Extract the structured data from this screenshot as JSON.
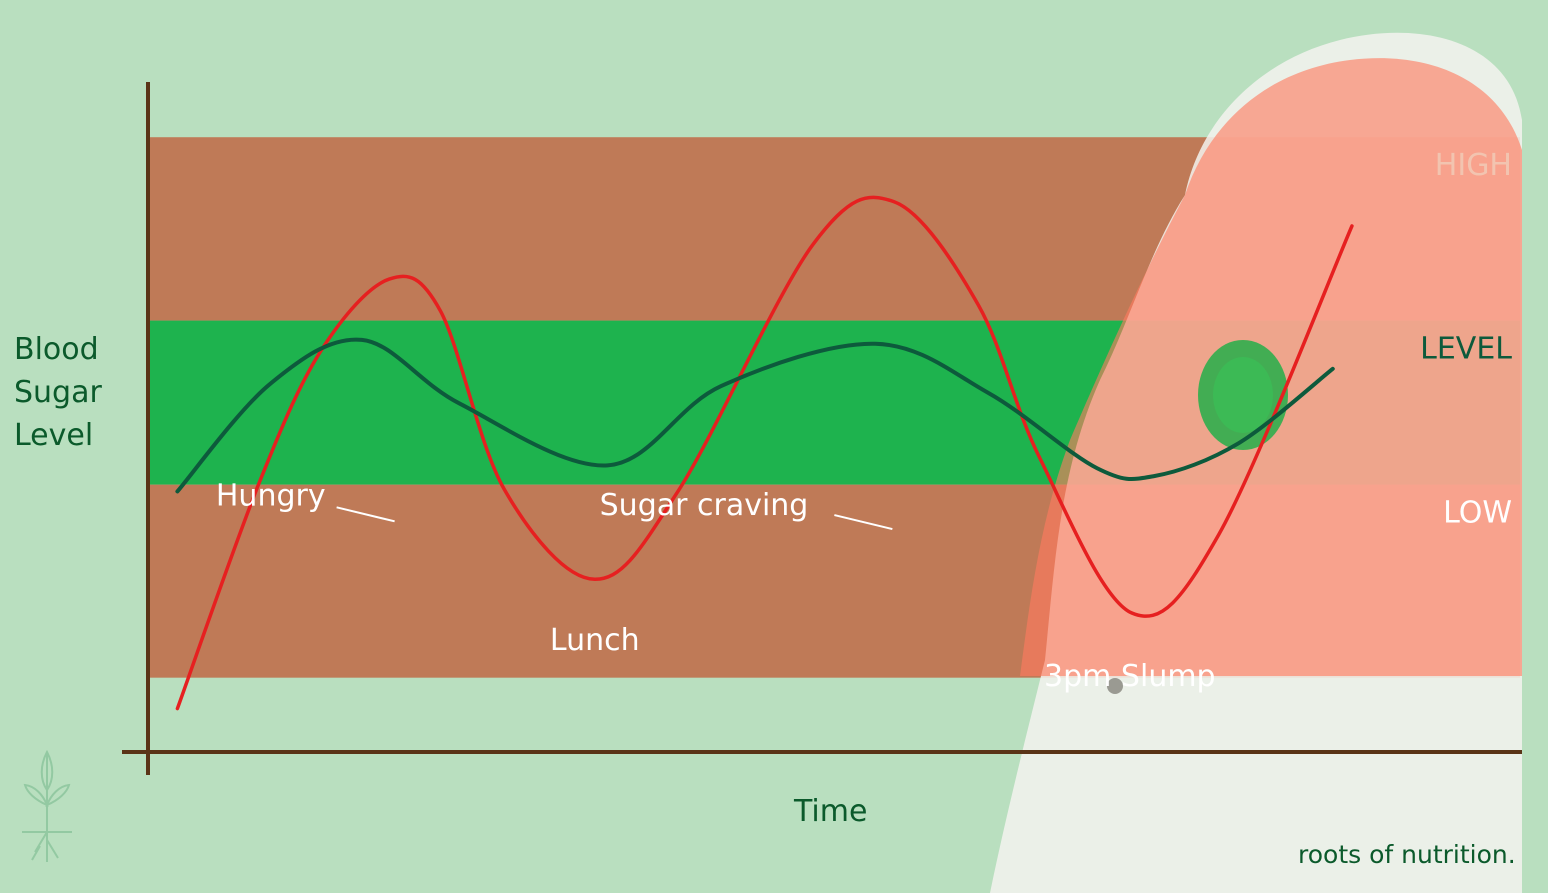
{
  "chart_data": {
    "type": "line",
    "title": "",
    "xlabel": "Time",
    "ylabel_lines": [
      "Blood",
      "Sugar",
      "Level"
    ],
    "zones": [
      {
        "label": "HIGH",
        "color": "#bf7a57",
        "lower": 370,
        "upper": 560
      },
      {
        "label": "LEVEL",
        "color": "#1eb34e",
        "lower": 200,
        "upper": 370
      },
      {
        "label": "LOW",
        "color": "#bf7a57",
        "lower": 0,
        "upper": 200
      }
    ],
    "xlim": [
      0,
      1500
    ],
    "ylim": [
      -77,
      640
    ],
    "series": [
      {
        "color": "#e62020",
        "values": [
          [
            30,
            -32
          ],
          [
            120,
            203
          ],
          [
            188,
            340
          ],
          [
            262,
            413
          ],
          [
            318,
            380
          ],
          [
            388,
            195
          ],
          [
            487,
            102
          ],
          [
            578,
            193
          ],
          [
            726,
            449
          ],
          [
            815,
            493
          ],
          [
            907,
            386
          ],
          [
            974,
            228
          ],
          [
            1075,
            67
          ],
          [
            1170,
            148
          ],
          [
            1316,
            468
          ]
        ]
      },
      {
        "color": "#0d5a3c",
        "values": [
          [
            30,
            193
          ],
          [
            131,
            304
          ],
          [
            232,
            350
          ],
          [
            339,
            284
          ],
          [
            501,
            220
          ],
          [
            625,
            302
          ],
          [
            794,
            346
          ],
          [
            918,
            295
          ],
          [
            1037,
            217
          ],
          [
            1100,
            209
          ],
          [
            1192,
            243
          ],
          [
            1295,
            320
          ]
        ]
      }
    ],
    "annotations": [
      {
        "text": "Hungry",
        "x": 270,
        "y": 162
      },
      {
        "text": "Lunch",
        "x": 487,
        "y": 72
      },
      {
        "text": "Sugar craving",
        "x": 815,
        "y": 154
      },
      {
        "text": "3pm Slump",
        "x": 1075,
        "y": 36
      }
    ],
    "grid": false,
    "legend": "none"
  },
  "watermark": "roots of nutrition.",
  "colors": {
    "background": "#b9dfbf",
    "axis": "#5a3417",
    "zone_text_high": "#f2c4b0",
    "zone_text_level": "#0d5a3c",
    "zone_text_low": "#ffffff",
    "photo_overlay": "#ff7a5f"
  }
}
